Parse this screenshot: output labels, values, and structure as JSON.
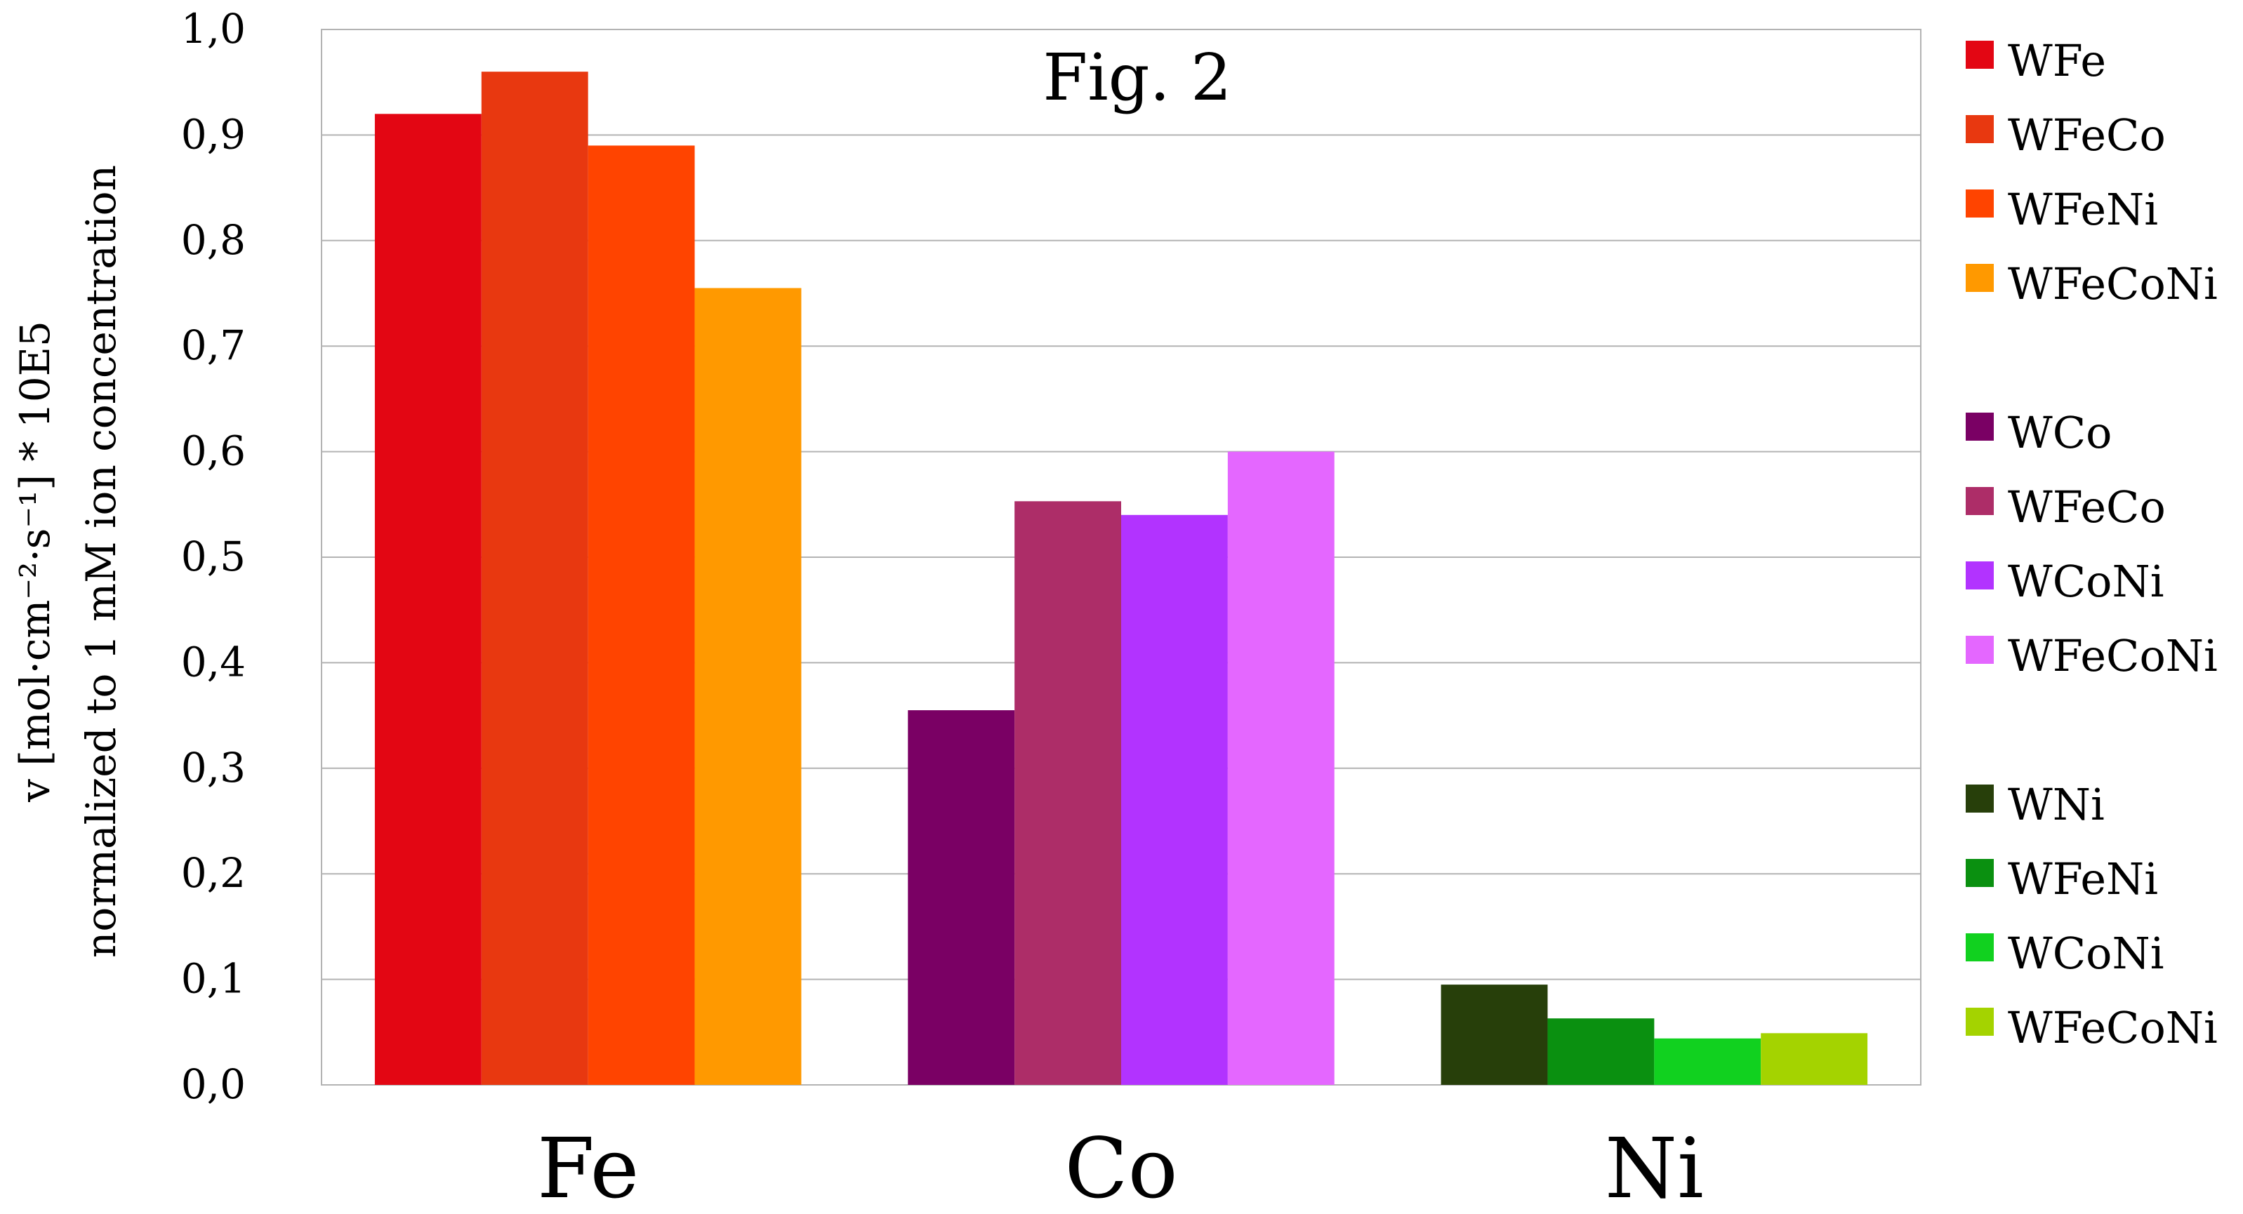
{
  "chart_data": {
    "type": "bar",
    "title": "Fig. 2",
    "ylabel_lines": [
      "v [mol·cm⁻²·s⁻¹] * 10E5",
      "normalized to 1 mM ion concentration"
    ],
    "xlabel": "",
    "ylim": [
      0,
      1.0
    ],
    "ytick_step": 0.1,
    "ytick_labels": [
      "0,0",
      "0,1",
      "0,2",
      "0,3",
      "0,4",
      "0,5",
      "0,6",
      "0,7",
      "0,8",
      "0,9",
      "1,0"
    ],
    "grid": true,
    "legend_position": "right",
    "categories": [
      "Fe",
      "Co",
      "Ni"
    ],
    "groups": [
      {
        "category": "Fe",
        "bars": [
          {
            "name": "WFe",
            "value": 0.92,
            "color": "#e30613"
          },
          {
            "name": "WFeCo",
            "value": 0.96,
            "color": "#e83810"
          },
          {
            "name": "WFeNi",
            "value": 0.89,
            "color": "#ff4400"
          },
          {
            "name": "WFeCoNi",
            "value": 0.755,
            "color": "#ff9900"
          }
        ]
      },
      {
        "category": "Co",
        "bars": [
          {
            "name": "WCo",
            "value": 0.355,
            "color": "#7a0064"
          },
          {
            "name": "WFeCo",
            "value": 0.553,
            "color": "#ad2d68"
          },
          {
            "name": "WCoNi",
            "value": 0.54,
            "color": "#b233ff"
          },
          {
            "name": "WFeCoNi",
            "value": 0.6,
            "color": "#e467ff"
          }
        ]
      },
      {
        "category": "Ni",
        "bars": [
          {
            "name": "WNi",
            "value": 0.095,
            "color": "#273f0a"
          },
          {
            "name": "WFeNi",
            "value": 0.063,
            "color": "#0a9010"
          },
          {
            "name": "WCoNi",
            "value": 0.044,
            "color": "#11d11f"
          },
          {
            "name": "WFeCoNi",
            "value": 0.049,
            "color": "#a4d300"
          }
        ]
      }
    ]
  }
}
